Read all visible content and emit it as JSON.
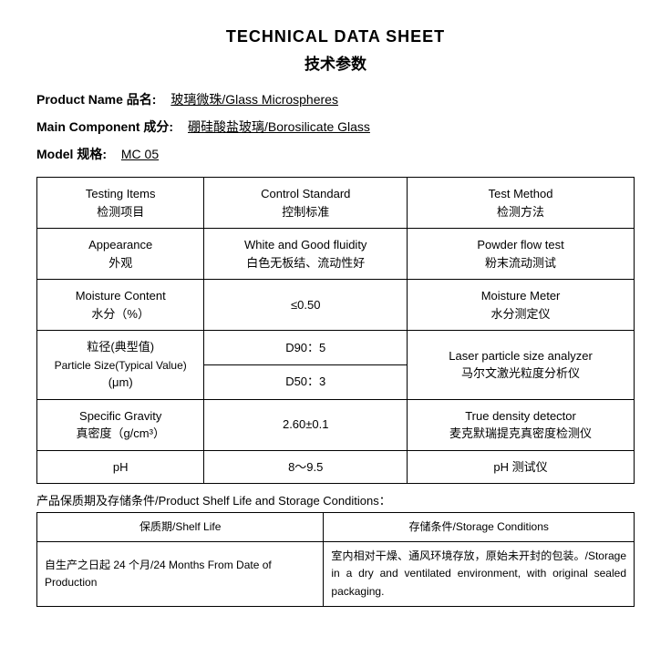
{
  "title_en": "TECHNICAL DATA SHEET",
  "title_cn": "技术参数",
  "fields": {
    "product_name_label": "Product Name 品名:",
    "product_name_value": "玻璃微珠/Glass Microspheres",
    "main_component_label": "Main Component 成分:",
    "main_component_value": "硼硅酸盐玻璃/Borosilicate Glass",
    "model_label": "Model 规格:",
    "model_value": "  MC 05  "
  },
  "table_headers": {
    "col1_en": "Testing Items",
    "col1_cn": "检测项目",
    "col2_en": "Control Standard",
    "col2_cn": "控制标准",
    "col3_en": "Test Method",
    "col3_cn": "检测方法"
  },
  "rows": {
    "appearance": {
      "item_en": "Appearance",
      "item_cn": "外观",
      "std_en": "White and Good fluidity",
      "std_cn": "白色无板结、流动性好",
      "method_en": "Powder flow test",
      "method_cn": "粉末流动测试"
    },
    "moisture": {
      "item_en": "Moisture Content",
      "item_cn": "水分（%）",
      "std": "≤0.50",
      "method_en": "Moisture Meter",
      "method_cn": "水分测定仪"
    },
    "particle": {
      "item_cn": "粒径(典型值)",
      "item_en": "Particle Size(Typical Value)",
      "item_unit": "(μm)",
      "d90": "D90：5",
      "d50": "D50：3",
      "method_en": "Laser particle size analyzer",
      "method_cn": "马尔文激光粒度分析仪"
    },
    "gravity": {
      "item_en": "Specific Gravity",
      "item_cn": "真密度（g/cm³）",
      "std": "2.60±0.1",
      "method_en": "True density detector",
      "method_cn": "麦克默瑞提克真密度检测仪"
    },
    "ph": {
      "item": "pH",
      "std": "8～9.5",
      "method": "pH 测试仪"
    }
  },
  "storage": {
    "heading": "产品保质期及存储条件/Product Shelf Life and Storage Conditions：",
    "shelf_label": "保质期/Shelf Life",
    "cond_label": "存储条件/Storage Conditions",
    "shelf_value": "自生产之日起 24 个月/24 Months From Date of Production",
    "cond_value": "室内相对干燥、通风环境存放，原始未开封的包装。/Storage in a dry and ventilated environment, with original sealed packaging."
  }
}
